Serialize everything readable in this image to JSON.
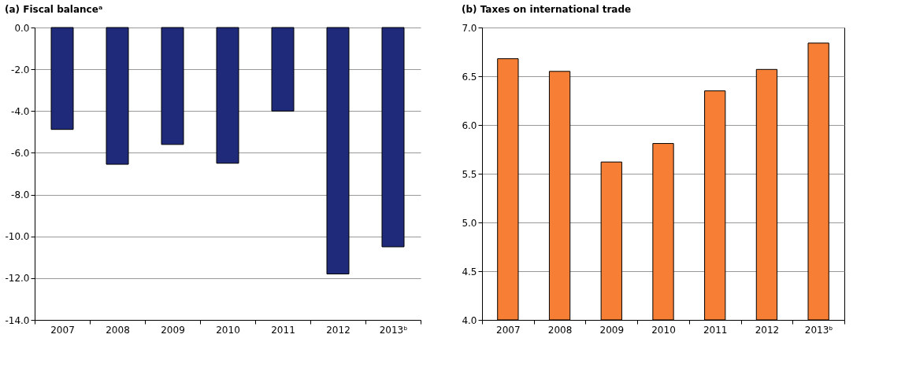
{
  "chart_data": [
    {
      "type": "bar",
      "title": "(a) Fiscal balanceᵃ",
      "categories": [
        "2007",
        "2008",
        "2009",
        "2010",
        "2011",
        "2012",
        "2013ᵇ"
      ],
      "values": [
        -4.88,
        -6.55,
        -5.6,
        -6.5,
        -4.0,
        -11.8,
        -10.5
      ],
      "color": "#1f2a7a",
      "ylim": [
        -14,
        0
      ],
      "yticks": [
        {
          "value": -14,
          "label": "-14.0"
        },
        {
          "value": -12,
          "label": "-12.0"
        },
        {
          "value": -10,
          "label": "-10.0"
        },
        {
          "value": -8,
          "label": "-8.0"
        },
        {
          "value": -6,
          "label": "-6.0"
        },
        {
          "value": -4,
          "label": "-4.0"
        },
        {
          "value": -2,
          "label": "-2.0"
        },
        {
          "value": 0,
          "label": "0.0"
        }
      ],
      "grid": "y"
    },
    {
      "type": "bar",
      "title": "(b) Taxes on international trade",
      "categories": [
        "2007",
        "2008",
        "2009",
        "2010",
        "2011",
        "2012",
        "2013ᵇ"
      ],
      "values": [
        6.68,
        6.55,
        5.62,
        5.81,
        6.35,
        6.57,
        6.84
      ],
      "color": "#f67f35",
      "ylim": [
        4,
        7
      ],
      "yticks": [
        {
          "value": 4,
          "label": "4.0"
        },
        4.5,
        {
          "value": 5,
          "label": "5.0"
        },
        5.5,
        {
          "value": 6,
          "label": "6.0"
        },
        6.5,
        {
          "value": 7,
          "label": "7.0"
        }
      ],
      "grid": "y"
    }
  ]
}
